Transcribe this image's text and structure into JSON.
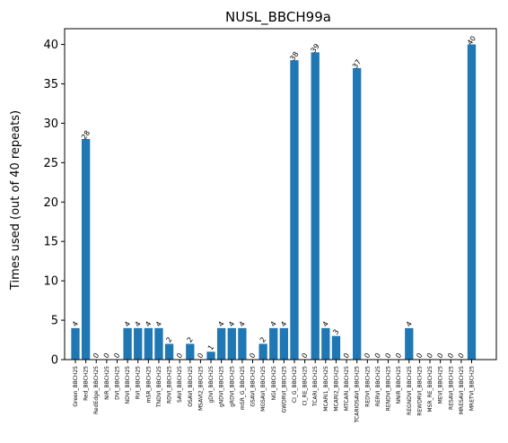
{
  "chart_data": {
    "type": "bar",
    "title": "NUSL_BBCH99a",
    "xlabel": "",
    "ylabel": "Times used (out of 40 repeats)",
    "ylim": [
      0,
      42
    ],
    "yticks": [
      0,
      5,
      10,
      15,
      20,
      25,
      30,
      35,
      40
    ],
    "grid": false,
    "bar_color": "#1f77b4",
    "categories": [
      "Green_BBCH25",
      "Red_BBCH25",
      "RedEdge_BBCH25",
      "NIR_BBCH25",
      "DVI_BBCH25",
      "NDVI_BBCH25",
      "RVI_BBCH25",
      "mSR_BBCH25",
      "TNDVI_BBCH25",
      "RDVI_BBCH25",
      "SAVI_BBCH25",
      "OSAVI_BBCH25",
      "MSAVI2_BBCH25",
      "gDVI_BBCH25",
      "gNDVI_BBCH25",
      "gRDVI_BBCH25",
      "mSR_G_BBCH25",
      "GSAVI_BBCH25",
      "MGSAVI_BBCH25",
      "NGI_BBCH25",
      "GWDRVI_BBCH25",
      "CI_G_BBCH25",
      "CI_RE_BBCH25",
      "TCARI_BBCH25",
      "MCARI1_BBCH25",
      "MCARI2_BBCH25",
      "MTCARI_BBCH25",
      "TCARIOSAVI_BBCH25",
      "REDVI_BBCH25",
      "RERVI_BBCH25",
      "RENDVI_BBCH25",
      "NNIR_BBCH25",
      "REGNDVI_BBCH25",
      "REWDRVI_BBCH25",
      "MSR_RE_BBCH25",
      "MEVI_BBCH25",
      "RESAVI_BBCH25",
      "MRESAVI_BBCH25",
      "MRETVI_BBCH25"
    ],
    "values": [
      4,
      28,
      0,
      0,
      0,
      4,
      4,
      4,
      4,
      2,
      0,
      2,
      0,
      1,
      4,
      4,
      4,
      0,
      2,
      4,
      4,
      38,
      0,
      39,
      4,
      3,
      0,
      37,
      0,
      0,
      0,
      0,
      4,
      0,
      0,
      0,
      0,
      0,
      40
    ]
  }
}
